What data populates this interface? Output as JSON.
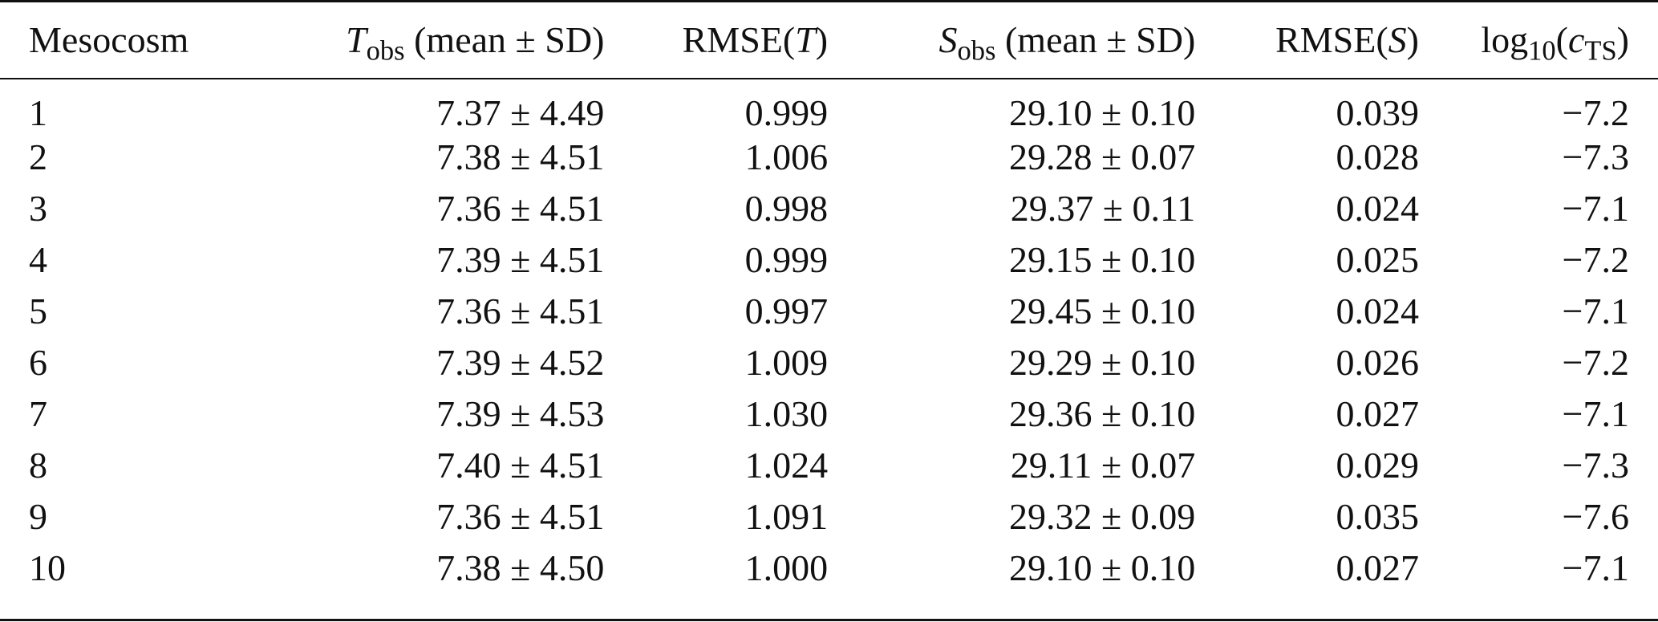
{
  "table": {
    "headers": {
      "mesocosm": "Mesocosm",
      "t_obs_sym": "T",
      "t_obs_sub": "obs",
      "t_obs_rest": " (mean ± SD)",
      "rmse_t_pre": "RMSE(",
      "rmse_t_sym": "T",
      "rmse_t_post": ")",
      "s_obs_sym": "S",
      "s_obs_sub": "obs",
      "s_obs_rest": " (mean ± SD)",
      "rmse_s_pre": "RMSE(",
      "rmse_s_sym": "S",
      "rmse_s_post": ")",
      "log_pre": "log",
      "log_sub": "10",
      "log_open": "(",
      "log_sym": "c",
      "log_sym_sub": "TS",
      "log_close": ")"
    },
    "rows": [
      {
        "mesocosm": "1",
        "t_obs": "7.37 ± 4.49",
        "rmse_t": "0.999",
        "s_obs": "29.10 ± 0.10",
        "rmse_s": "0.039",
        "log_cts": "−7.2"
      },
      {
        "mesocosm": "2",
        "t_obs": "7.38 ± 4.51",
        "rmse_t": "1.006",
        "s_obs": "29.28 ± 0.07",
        "rmse_s": "0.028",
        "log_cts": "−7.3"
      },
      {
        "mesocosm": "3",
        "t_obs": "7.36 ± 4.51",
        "rmse_t": "0.998",
        "s_obs": "29.37 ± 0.11",
        "rmse_s": "0.024",
        "log_cts": "−7.1"
      },
      {
        "mesocosm": "4",
        "t_obs": "7.39 ± 4.51",
        "rmse_t": "0.999",
        "s_obs": "29.15 ± 0.10",
        "rmse_s": "0.025",
        "log_cts": "−7.2"
      },
      {
        "mesocosm": "5",
        "t_obs": "7.36 ± 4.51",
        "rmse_t": "0.997",
        "s_obs": "29.45 ± 0.10",
        "rmse_s": "0.024",
        "log_cts": "−7.1"
      },
      {
        "mesocosm": "6",
        "t_obs": "7.39 ± 4.52",
        "rmse_t": "1.009",
        "s_obs": "29.29 ± 0.10",
        "rmse_s": "0.026",
        "log_cts": "−7.2"
      },
      {
        "mesocosm": "7",
        "t_obs": "7.39 ± 4.53",
        "rmse_t": "1.030",
        "s_obs": "29.36 ± 0.10",
        "rmse_s": "0.027",
        "log_cts": "−7.1"
      },
      {
        "mesocosm": "8",
        "t_obs": "7.40 ± 4.51",
        "rmse_t": "1.024",
        "s_obs": "29.11 ± 0.07",
        "rmse_s": "0.029",
        "log_cts": "−7.3"
      },
      {
        "mesocosm": "9",
        "t_obs": "7.36 ± 4.51",
        "rmse_t": "1.091",
        "s_obs": "29.32 ± 0.09",
        "rmse_s": "0.035",
        "log_cts": "−7.6"
      },
      {
        "mesocosm": "10",
        "t_obs": "7.38 ± 4.50",
        "rmse_t": "1.000",
        "s_obs": "29.10 ± 0.10",
        "rmse_s": "0.027",
        "log_cts": "−7.1"
      }
    ]
  }
}
